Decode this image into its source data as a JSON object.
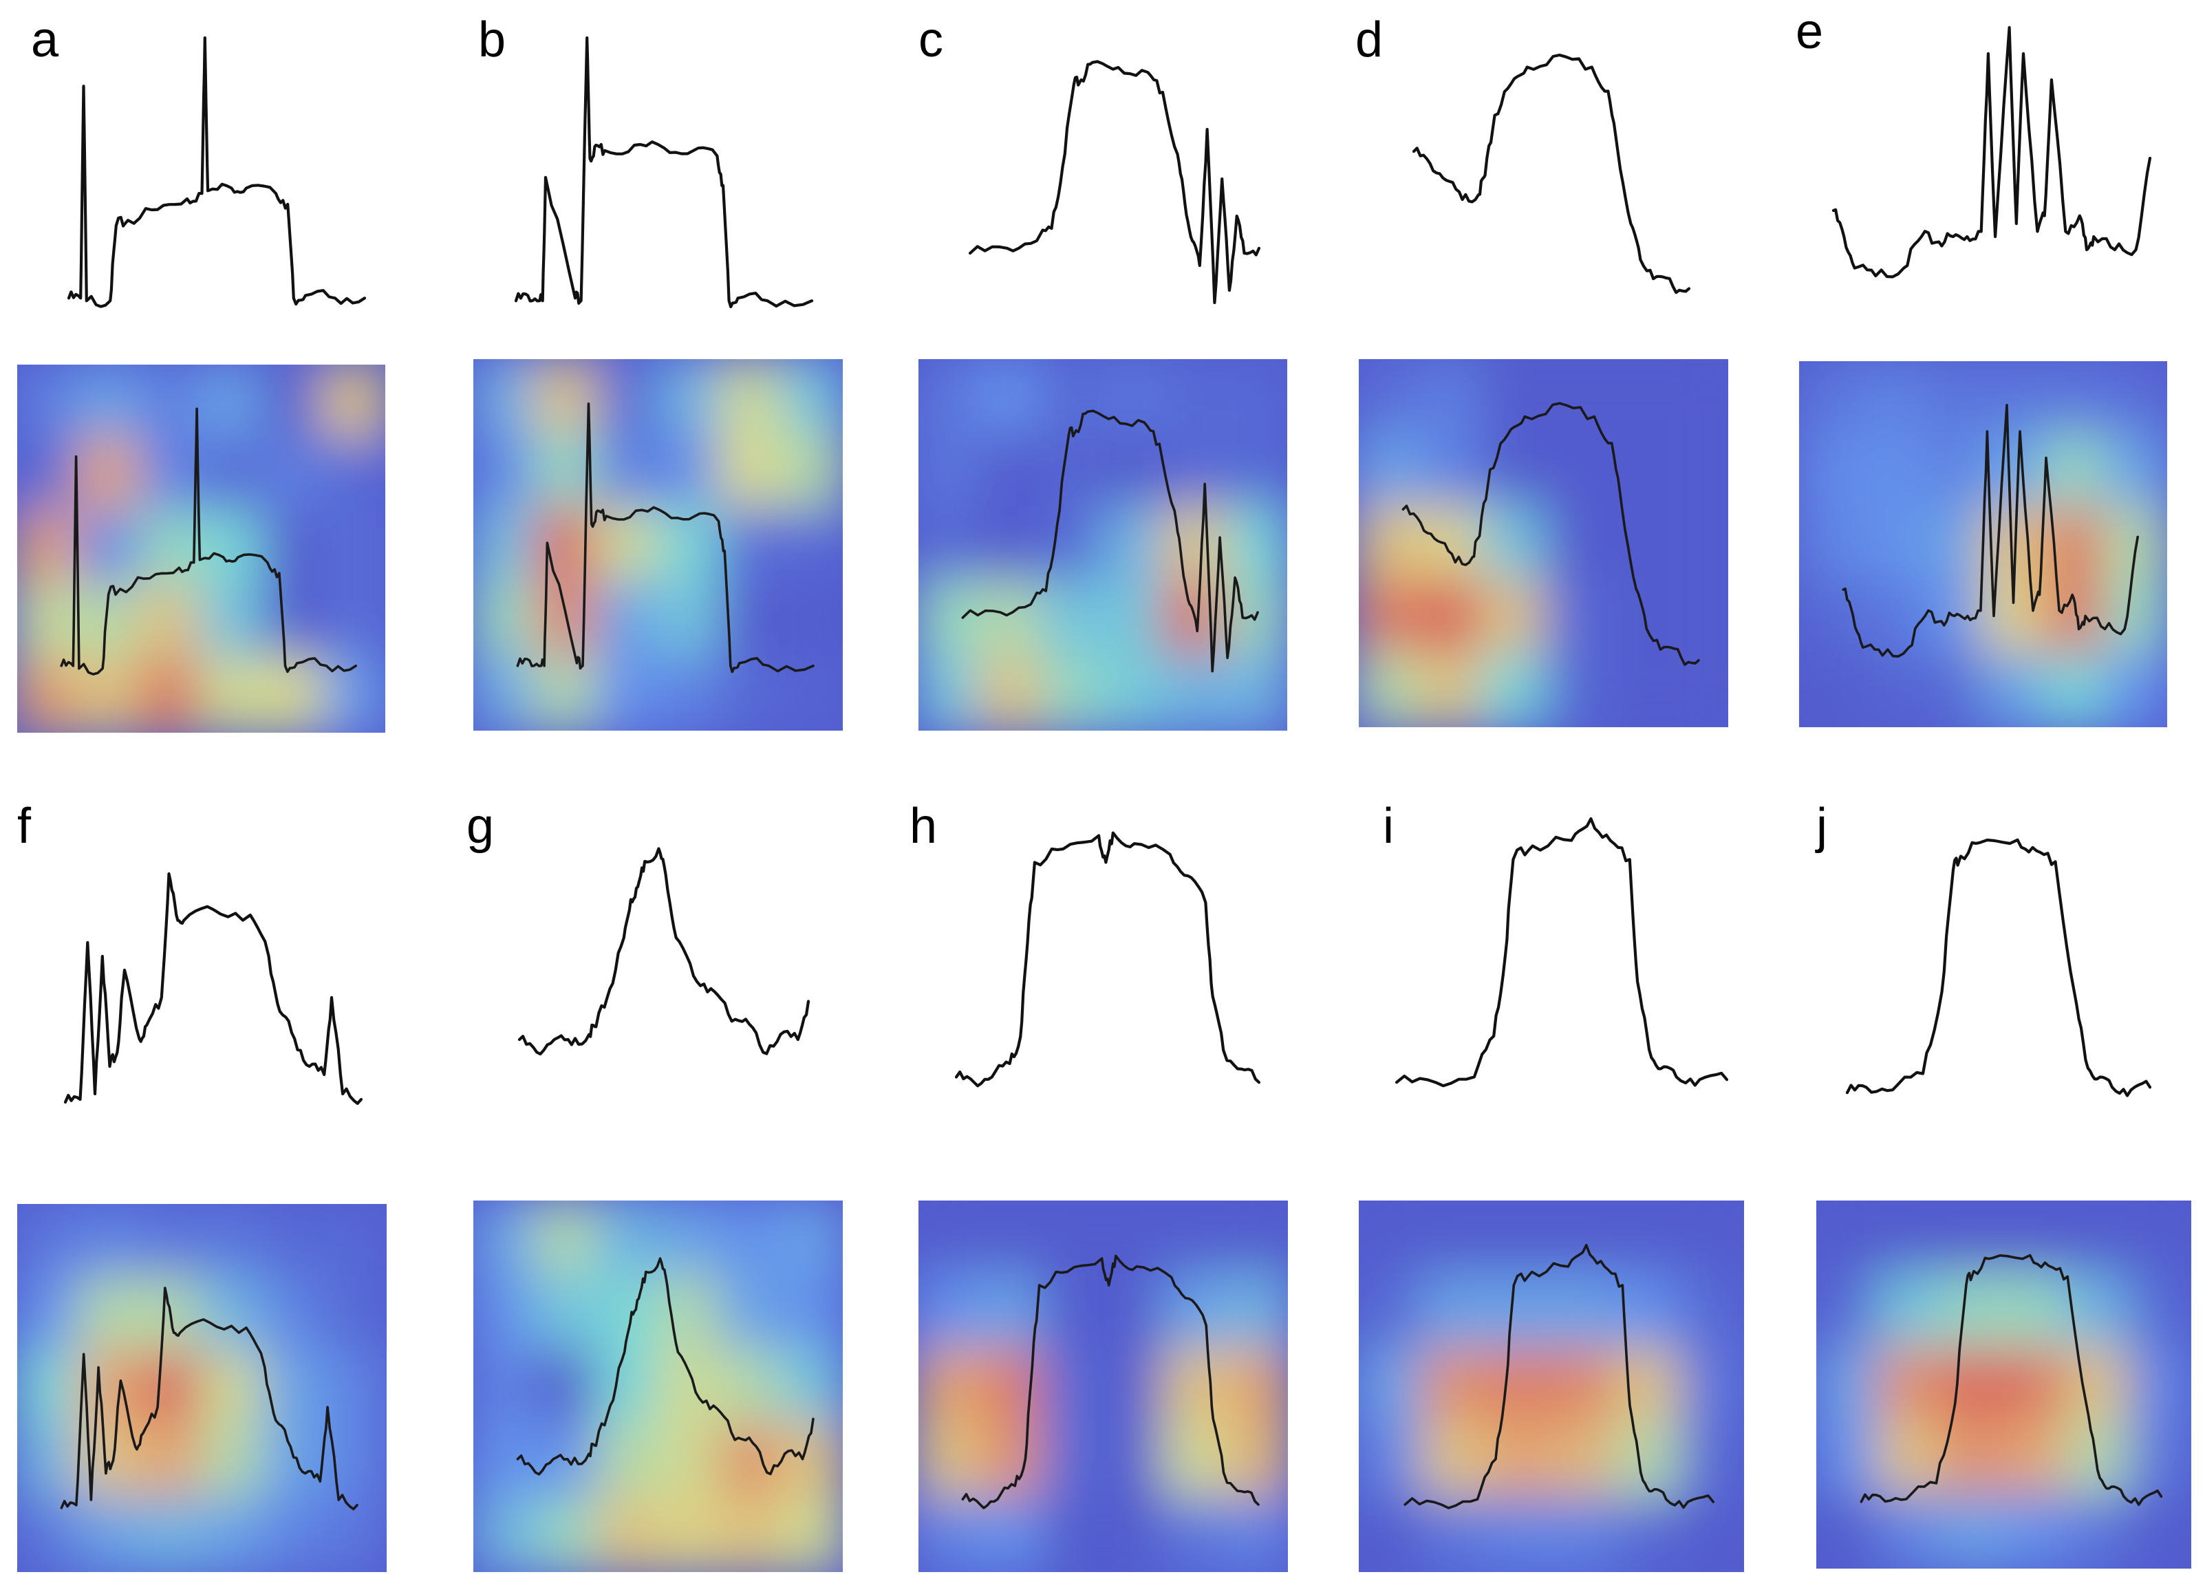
{
  "figure": {
    "panel_labels": [
      "a",
      "b",
      "c",
      "d",
      "e",
      "f",
      "g",
      "h",
      "i",
      "j"
    ]
  },
  "chart_data": [
    {
      "type": "line",
      "label": "a",
      "x": [
        0,
        0.04,
        0.05,
        0.06,
        0.14,
        0.16,
        0.2,
        0.3,
        0.4,
        0.45,
        0.46,
        0.47,
        0.55,
        0.6,
        0.7,
        0.74,
        0.76,
        0.8,
        0.9,
        1.0
      ],
      "y": [
        0.03,
        0.03,
        0.82,
        0.02,
        0.02,
        0.3,
        0.32,
        0.36,
        0.4,
        0.42,
        1.0,
        0.43,
        0.44,
        0.44,
        0.42,
        0.38,
        0.03,
        0.04,
        0.03,
        0.03
      ],
      "heat": [
        [
          0.18,
          0.3,
          0.18,
          0.3,
          0.05,
          0.7
        ],
        [
          0.1,
          0.8,
          0.2,
          0.1,
          0.18,
          0.1
        ],
        [
          0.82,
          0.22,
          0.5,
          0.45,
          0.05,
          0.12
        ],
        [
          0.58,
          0.55,
          0.7,
          0.4,
          0.05,
          0.12
        ],
        [
          0.82,
          0.7,
          0.92,
          0.6,
          0.62,
          0.28
        ]
      ]
    },
    {
      "type": "line",
      "label": "b",
      "x": [
        0,
        0.04,
        0.08,
        0.09,
        0.1,
        0.2,
        0.22,
        0.24,
        0.25,
        0.27,
        0.3,
        0.4,
        0.5,
        0.6,
        0.68,
        0.7,
        0.72,
        0.75,
        0.85,
        1.0
      ],
      "y": [
        0.02,
        0.04,
        0.02,
        0.02,
        0.48,
        0.03,
        0.02,
        1.0,
        0.55,
        0.6,
        0.58,
        0.6,
        0.59,
        0.58,
        0.56,
        0.45,
        0.02,
        0.03,
        0.02,
        0.02
      ],
      "heat": [
        [
          0.33,
          0.7,
          0.1,
          0.34,
          0.6,
          0.4
        ],
        [
          0.22,
          0.5,
          0.18,
          0.22,
          0.62,
          0.55
        ],
        [
          0.38,
          0.95,
          0.6,
          0.45,
          0.12,
          0.1
        ],
        [
          0.5,
          0.88,
          0.3,
          0.4,
          0.05,
          0.05
        ],
        [
          0.32,
          0.55,
          0.25,
          0.2,
          0.1,
          0.08
        ]
      ]
    },
    {
      "type": "line",
      "label": "c",
      "x": [
        0,
        0.1,
        0.18,
        0.22,
        0.25,
        0.28,
        0.3,
        0.33,
        0.4,
        0.48,
        0.52,
        0.56,
        0.58,
        0.6,
        0.62,
        0.64,
        0.66,
        0.68,
        0.7,
        0.72,
        0.74,
        0.78
      ],
      "y": [
        0.2,
        0.22,
        0.25,
        0.3,
        0.55,
        0.88,
        0.9,
        0.97,
        0.95,
        0.93,
        0.85,
        0.6,
        0.4,
        0.25,
        0.15,
        0.7,
        0.0,
        0.5,
        0.05,
        0.35,
        0.2,
        0.22
      ],
      "heat": [
        [
          0.15,
          0.25,
          0.1,
          0.15,
          0.1,
          0.1
        ],
        [
          0.15,
          0.05,
          0.08,
          0.05,
          0.1,
          0.1
        ],
        [
          0.1,
          0.05,
          0.1,
          0.35,
          0.7,
          0.45
        ],
        [
          0.5,
          0.55,
          0.4,
          0.4,
          0.95,
          0.5
        ],
        [
          0.4,
          0.7,
          0.5,
          0.42,
          0.35,
          0.35
        ]
      ]
    },
    {
      "type": "line",
      "label": "d",
      "x": [
        0,
        0.05,
        0.1,
        0.15,
        0.2,
        0.22,
        0.25,
        0.3,
        0.35,
        0.45,
        0.55,
        0.6,
        0.63,
        0.67,
        0.7,
        0.75,
        0.8,
        0.85
      ],
      "y": [
        0.6,
        0.55,
        0.48,
        0.4,
        0.42,
        0.5,
        0.75,
        0.88,
        0.95,
        1.0,
        0.95,
        0.85,
        0.6,
        0.3,
        0.15,
        0.08,
        0.04,
        0.03
      ],
      "heat": [
        [
          0.12,
          0.18,
          0.05,
          0.05,
          0.05,
          0.05
        ],
        [
          0.3,
          0.2,
          0.05,
          0.05,
          0.05,
          0.05
        ],
        [
          0.7,
          0.65,
          0.4,
          0.05,
          0.05,
          0.05
        ],
        [
          0.9,
          0.98,
          0.7,
          0.1,
          0.05,
          0.05
        ],
        [
          0.55,
          0.7,
          0.45,
          0.1,
          0.05,
          0.05
        ]
      ]
    },
    {
      "type": "line",
      "label": "e",
      "x": [
        0,
        0.03,
        0.06,
        0.12,
        0.2,
        0.25,
        0.3,
        0.34,
        0.38,
        0.42,
        0.44,
        0.46,
        0.5,
        0.52,
        0.54,
        0.58,
        0.6,
        0.62,
        0.66,
        0.7,
        0.72,
        0.74,
        0.8,
        0.86,
        0.9
      ],
      "y": [
        0.3,
        0.2,
        0.08,
        0.05,
        0.08,
        0.2,
        0.18,
        0.2,
        0.2,
        0.22,
        0.9,
        0.2,
        1.0,
        0.25,
        0.9,
        0.22,
        0.28,
        0.8,
        0.22,
        0.28,
        0.15,
        0.2,
        0.15,
        0.15,
        0.5
      ],
      "heat": [
        [
          0.15,
          0.2,
          0.15,
          0.15,
          0.15,
          0.12
        ],
        [
          0.22,
          0.25,
          0.2,
          0.3,
          0.5,
          0.3
        ],
        [
          0.2,
          0.25,
          0.3,
          0.7,
          0.9,
          0.55
        ],
        [
          0.1,
          0.15,
          0.25,
          0.65,
          0.92,
          0.5
        ],
        [
          0.05,
          0.08,
          0.1,
          0.3,
          0.45,
          0.25
        ]
      ]
    },
    {
      "type": "line",
      "label": "f",
      "x": [
        0,
        0.04,
        0.06,
        0.08,
        0.1,
        0.12,
        0.14,
        0.16,
        0.2,
        0.22,
        0.26,
        0.28,
        0.3,
        0.32,
        0.4,
        0.5,
        0.55,
        0.58,
        0.62,
        0.66,
        0.7,
        0.72,
        0.75,
        0.8
      ],
      "y": [
        0.02,
        0.03,
        0.6,
        0.05,
        0.55,
        0.15,
        0.2,
        0.5,
        0.25,
        0.3,
        0.4,
        0.85,
        0.7,
        0.68,
        0.72,
        0.7,
        0.55,
        0.35,
        0.25,
        0.15,
        0.12,
        0.4,
        0.05,
        0.03
      ],
      "heat": [
        [
          0.15,
          0.2,
          0.15,
          0.15,
          0.1,
          0.1
        ],
        [
          0.25,
          0.55,
          0.55,
          0.35,
          0.2,
          0.1
        ],
        [
          0.45,
          0.8,
          0.95,
          0.6,
          0.3,
          0.2
        ],
        [
          0.35,
          0.7,
          0.8,
          0.55,
          0.3,
          0.2
        ],
        [
          0.15,
          0.3,
          0.35,
          0.3,
          0.2,
          0.15
        ]
      ]
    },
    {
      "type": "line",
      "label": "g",
      "x": [
        0,
        0.05,
        0.1,
        0.15,
        0.2,
        0.22,
        0.26,
        0.3,
        0.32,
        0.34,
        0.36,
        0.4,
        0.42,
        0.45,
        0.5,
        0.55,
        0.6,
        0.65,
        0.7,
        0.75,
        0.8,
        0.83
      ],
      "y": [
        0.2,
        0.15,
        0.2,
        0.18,
        0.22,
        0.25,
        0.4,
        0.6,
        0.75,
        0.8,
        0.9,
        0.95,
        0.85,
        0.6,
        0.45,
        0.4,
        0.3,
        0.28,
        0.15,
        0.22,
        0.2,
        0.35
      ],
      "heat": [
        [
          0.3,
          0.55,
          0.35,
          0.3,
          0.25,
          0.3
        ],
        [
          0.25,
          0.4,
          0.45,
          0.55,
          0.3,
          0.25
        ],
        [
          0.2,
          0.05,
          0.45,
          0.6,
          0.55,
          0.4
        ],
        [
          0.25,
          0.25,
          0.55,
          0.6,
          0.85,
          0.7
        ],
        [
          0.35,
          0.5,
          0.7,
          0.65,
          0.7,
          0.6
        ]
      ]
    },
    {
      "type": "line",
      "label": "h",
      "x": [
        0,
        0.05,
        0.1,
        0.15,
        0.18,
        0.2,
        0.22,
        0.3,
        0.4,
        0.42,
        0.44,
        0.5,
        0.6,
        0.65,
        0.7,
        0.72,
        0.75,
        0.8,
        0.85
      ],
      "y": [
        0.05,
        0.03,
        0.05,
        0.1,
        0.2,
        0.55,
        0.85,
        0.9,
        0.95,
        0.85,
        0.96,
        0.92,
        0.88,
        0.8,
        0.7,
        0.35,
        0.15,
        0.08,
        0.03
      ],
      "heat": [
        [
          0.05,
          0.05,
          0.05,
          0.05,
          0.05,
          0.05
        ],
        [
          0.25,
          0.3,
          0.05,
          0.05,
          0.3,
          0.35
        ],
        [
          0.8,
          0.9,
          0.1,
          0.05,
          0.7,
          0.8
        ],
        [
          0.7,
          0.85,
          0.1,
          0.05,
          0.6,
          0.75
        ],
        [
          0.2,
          0.25,
          0.05,
          0.05,
          0.15,
          0.2
        ]
      ]
    },
    {
      "type": "line",
      "label": "i",
      "x": [
        0,
        0.1,
        0.2,
        0.25,
        0.28,
        0.3,
        0.35,
        0.45,
        0.5,
        0.55,
        0.6,
        0.62,
        0.65,
        0.68,
        0.72,
        0.78,
        0.85
      ],
      "y": [
        0.03,
        0.03,
        0.05,
        0.2,
        0.5,
        0.85,
        0.9,
        0.92,
        1.0,
        0.92,
        0.85,
        0.4,
        0.15,
        0.08,
        0.05,
        0.04,
        0.04
      ],
      "heat": [
        [
          0.05,
          0.05,
          0.05,
          0.05,
          0.05,
          0.05
        ],
        [
          0.1,
          0.3,
          0.3,
          0.3,
          0.25,
          0.1
        ],
        [
          0.3,
          0.85,
          0.9,
          0.88,
          0.7,
          0.15
        ],
        [
          0.2,
          0.7,
          0.8,
          0.75,
          0.55,
          0.1
        ],
        [
          0.05,
          0.15,
          0.2,
          0.2,
          0.1,
          0.05
        ]
      ]
    },
    {
      "type": "line",
      "label": "j",
      "x": [
        0,
        0.05,
        0.12,
        0.2,
        0.25,
        0.28,
        0.3,
        0.35,
        0.45,
        0.5,
        0.55,
        0.6,
        0.63,
        0.66,
        0.7,
        0.75,
        0.8
      ],
      "y": [
        0.03,
        0.05,
        0.04,
        0.1,
        0.4,
        0.85,
        0.9,
        0.95,
        0.96,
        0.92,
        0.88,
        0.4,
        0.15,
        0.08,
        0.05,
        0.04,
        0.05
      ],
      "heat": [
        [
          0.05,
          0.05,
          0.05,
          0.05,
          0.05,
          0.05
        ],
        [
          0.1,
          0.4,
          0.5,
          0.5,
          0.35,
          0.1
        ],
        [
          0.3,
          0.85,
          0.95,
          0.92,
          0.7,
          0.2
        ],
        [
          0.25,
          0.7,
          0.85,
          0.8,
          0.55,
          0.15
        ],
        [
          0.05,
          0.2,
          0.3,
          0.25,
          0.15,
          0.05
        ]
      ]
    }
  ]
}
